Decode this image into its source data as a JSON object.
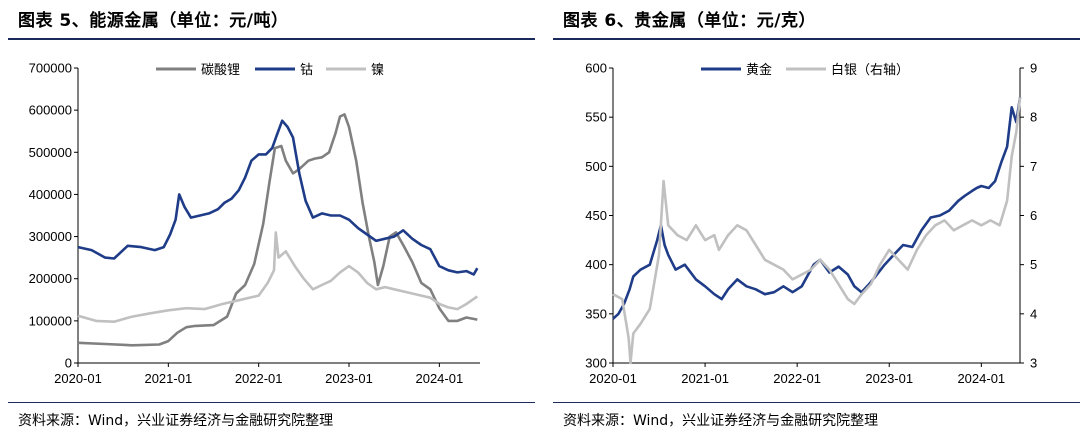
{
  "charts": [
    {
      "title": "图表 5、能源金属（单位：元/吨）",
      "source": "资料来源：Wind，兴业证券经济与金融研究院整理",
      "chart_data": {
        "type": "line",
        "title": "图表 5、能源金属（单位：元/吨）",
        "ylabel": "元/吨",
        "ylim": [
          0,
          700000
        ],
        "yticks": [
          "0",
          "100000",
          "200000",
          "300000",
          "400000",
          "500000",
          "600000",
          "700000"
        ],
        "xlim": [
          2020.0,
          2024.45
        ],
        "xticks": [
          "2020-01",
          "2021-01",
          "2022-01",
          "2023-01",
          "2024-01"
        ],
        "legend": "top",
        "grid": false,
        "series": [
          {
            "name": "碳酸锂",
            "color": "#808080",
            "x": [
              2020.0,
              2020.3,
              2020.6,
              2020.9,
              2021.0,
              2021.1,
              2021.2,
              2021.3,
              2021.5,
              2021.65,
              2021.75,
              2021.85,
              2021.95,
              2022.05,
              2022.12,
              2022.18,
              2022.25,
              2022.3,
              2022.38,
              2022.45,
              2022.55,
              2022.62,
              2022.7,
              2022.78,
              2022.85,
              2022.9,
              2022.95,
              2023.0,
              2023.08,
              2023.15,
              2023.22,
              2023.28,
              2023.32,
              2023.38,
              2023.45,
              2023.52,
              2023.6,
              2023.7,
              2023.8,
              2023.9,
              2024.0,
              2024.1,
              2024.2,
              2024.3,
              2024.42
            ],
            "values": [
              48000,
              45000,
              42000,
              44000,
              52000,
              72000,
              85000,
              88000,
              90000,
              110000,
              165000,
              185000,
              235000,
              330000,
              430000,
              510000,
              515000,
              480000,
              450000,
              460000,
              480000,
              485000,
              488000,
              500000,
              545000,
              585000,
              590000,
              560000,
              480000,
              380000,
              300000,
              240000,
              185000,
              230000,
              300000,
              310000,
              280000,
              240000,
              190000,
              175000,
              130000,
              100000,
              100000,
              108000,
              103000
            ]
          },
          {
            "name": "钴",
            "color": "#1f3c88",
            "x": [
              2020.0,
              2020.15,
              2020.3,
              2020.4,
              2020.55,
              2020.7,
              2020.85,
              2020.95,
              2021.02,
              2021.08,
              2021.12,
              2021.18,
              2021.25,
              2021.35,
              2021.45,
              2021.55,
              2021.62,
              2021.7,
              2021.78,
              2021.85,
              2021.92,
              2022.0,
              2022.08,
              2022.15,
              2022.2,
              2022.26,
              2022.32,
              2022.38,
              2022.45,
              2022.52,
              2022.6,
              2022.7,
              2022.8,
              2022.9,
              2023.0,
              2023.1,
              2023.2,
              2023.3,
              2023.4,
              2023.5,
              2023.6,
              2023.7,
              2023.8,
              2023.9,
              2024.0,
              2024.1,
              2024.2,
              2024.3,
              2024.38,
              2024.42
            ],
            "values": [
              275000,
              268000,
              250000,
              248000,
              278000,
              275000,
              268000,
              275000,
              305000,
              340000,
              400000,
              370000,
              345000,
              350000,
              355000,
              365000,
              380000,
              390000,
              410000,
              440000,
              480000,
              495000,
              495000,
              510000,
              540000,
              575000,
              560000,
              535000,
              450000,
              385000,
              345000,
              355000,
              350000,
              350000,
              340000,
              320000,
              305000,
              290000,
              295000,
              300000,
              315000,
              295000,
              280000,
              270000,
              230000,
              220000,
              215000,
              218000,
              210000,
              225000
            ]
          },
          {
            "name": "镍",
            "color": "#c0c0c0",
            "x": [
              2020.0,
              2020.2,
              2020.4,
              2020.6,
              2020.8,
              2021.0,
              2021.2,
              2021.4,
              2021.6,
              2021.8,
              2022.0,
              2022.1,
              2022.17,
              2022.19,
              2022.22,
              2022.3,
              2022.4,
              2022.5,
              2022.6,
              2022.7,
              2022.8,
              2022.9,
              2023.0,
              2023.1,
              2023.2,
              2023.3,
              2023.4,
              2023.5,
              2023.6,
              2023.7,
              2023.8,
              2023.9,
              2024.0,
              2024.1,
              2024.2,
              2024.3,
              2024.42
            ],
            "values": [
              112000,
              100000,
              98000,
              110000,
              118000,
              125000,
              130000,
              128000,
              140000,
              150000,
              160000,
              190000,
              220000,
              310000,
              250000,
              265000,
              230000,
              200000,
              175000,
              185000,
              195000,
              215000,
              230000,
              215000,
              190000,
              175000,
              180000,
              175000,
              170000,
              165000,
              160000,
              155000,
              140000,
              132000,
              128000,
              140000,
              158000
            ]
          }
        ]
      }
    },
    {
      "title": "图表 6、贵金属（单位：元/克）",
      "source": "资料来源：Wind，兴业证券经济与金融研究院整理",
      "chart_data": {
        "type": "line",
        "title": "图表 6、贵金属（单位：元/克）",
        "ylabel": "元/克",
        "ylim": [
          300,
          600
        ],
        "yticks": [
          "300",
          "350",
          "400",
          "450",
          "500",
          "550",
          "600"
        ],
        "y2lim": [
          3,
          9
        ],
        "y2ticks": [
          "3",
          "4",
          "5",
          "6",
          "7",
          "8",
          "9"
        ],
        "xlim": [
          2020.0,
          2024.42
        ],
        "xticks": [
          "2020-01",
          "2021-01",
          "2022-01",
          "2023-01",
          "2024-01"
        ],
        "legend": "top",
        "grid": false,
        "series": [
          {
            "name": "黄金",
            "axis": "left",
            "color": "#1f3c88",
            "x": [
              2020.0,
              2020.06,
              2020.12,
              2020.18,
              2020.22,
              2020.3,
              2020.4,
              2020.48,
              2020.52,
              2020.56,
              2020.6,
              2020.68,
              2020.78,
              2020.9,
              2021.0,
              2021.1,
              2021.18,
              2021.25,
              2021.35,
              2021.45,
              2021.55,
              2021.65,
              2021.75,
              2021.85,
              2021.95,
              2022.05,
              2022.12,
              2022.18,
              2022.25,
              2022.35,
              2022.45,
              2022.55,
              2022.62,
              2022.7,
              2022.78,
              2022.85,
              2022.95,
              2023.05,
              2023.15,
              2023.25,
              2023.35,
              2023.45,
              2023.55,
              2023.65,
              2023.75,
              2023.82,
              2023.9,
              2023.95,
              2024.0,
              2024.08,
              2024.15,
              2024.22,
              2024.28,
              2024.33,
              2024.38,
              2024.42
            ],
            "values": [
              345,
              350,
              360,
              375,
              388,
              395,
              400,
              425,
              440,
              420,
              410,
              395,
              400,
              385,
              378,
              370,
              365,
              375,
              385,
              378,
              375,
              370,
              372,
              378,
              372,
              378,
              390,
              400,
              405,
              392,
              398,
              390,
              378,
              372,
              380,
              388,
              400,
              410,
              420,
              418,
              435,
              448,
              450,
              455,
              465,
              470,
              475,
              478,
              480,
              478,
              485,
              505,
              520,
              560,
              545,
              570
            ]
          },
          {
            "name": "白银（右轴）",
            "axis": "right",
            "color": "#c0c0c0",
            "x": [
              2020.0,
              2020.1,
              2020.17,
              2020.19,
              2020.22,
              2020.3,
              2020.4,
              2020.5,
              2020.55,
              2020.6,
              2020.7,
              2020.8,
              2020.9,
              2021.0,
              2021.1,
              2021.15,
              2021.25,
              2021.35,
              2021.45,
              2021.55,
              2021.65,
              2021.75,
              2021.85,
              2021.95,
              2022.05,
              2022.15,
              2022.25,
              2022.35,
              2022.45,
              2022.55,
              2022.62,
              2022.7,
              2022.8,
              2022.9,
              2023.0,
              2023.1,
              2023.2,
              2023.3,
              2023.4,
              2023.5,
              2023.6,
              2023.7,
              2023.8,
              2023.9,
              2024.0,
              2024.1,
              2024.2,
              2024.28,
              2024.33,
              2024.38,
              2024.42
            ],
            "values": [
              4.4,
              4.3,
              3.5,
              3.0,
              3.6,
              3.8,
              4.1,
              5.2,
              6.7,
              5.8,
              5.6,
              5.5,
              5.8,
              5.5,
              5.6,
              5.3,
              5.6,
              5.8,
              5.7,
              5.4,
              5.1,
              5.0,
              4.9,
              4.7,
              4.8,
              4.9,
              5.1,
              4.9,
              4.6,
              4.3,
              4.2,
              4.4,
              4.6,
              5.0,
              5.3,
              5.1,
              4.9,
              5.3,
              5.6,
              5.8,
              5.9,
              5.7,
              5.8,
              5.9,
              5.8,
              5.9,
              5.8,
              6.3,
              7.2,
              7.7,
              8.4
            ]
          }
        ]
      }
    }
  ]
}
